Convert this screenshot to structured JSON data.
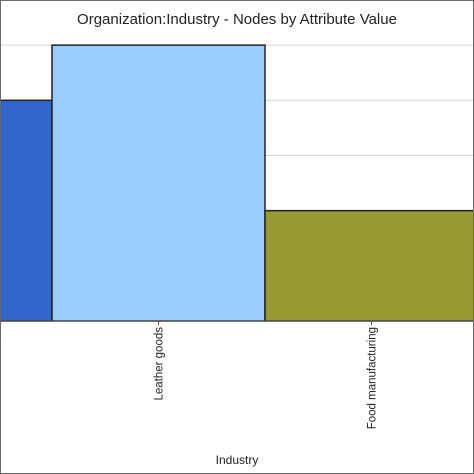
{
  "chart_data": {
    "type": "bar",
    "title": "Organization:Industry - Nodes by Attribute Value",
    "xlabel": "Industry",
    "ylabel": "",
    "categories": [
      "",
      "Leather goods",
      "Food manufacturing"
    ],
    "values": [
      4,
      5,
      2
    ],
    "ylim": [
      0,
      5.8
    ],
    "colors": [
      "#3366cc",
      "#99ccff",
      "#999933"
    ],
    "grid": true,
    "legend": "none"
  }
}
